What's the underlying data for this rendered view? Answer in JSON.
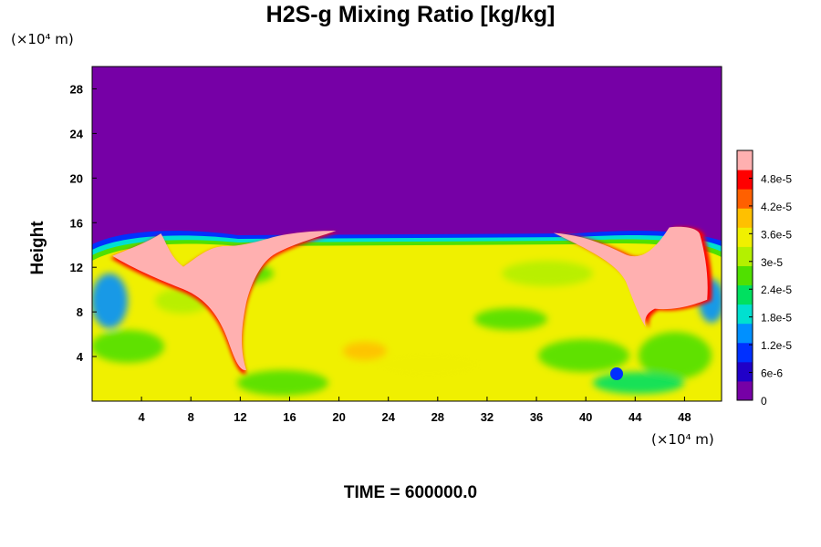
{
  "chart_data": {
    "type": "heatmap",
    "title": "H2S-g Mixing Ratio [kg/kg]",
    "ylabel": "Height",
    "xlabel": "",
    "x_unit": "(×10⁴ m)",
    "y_unit": "(×10⁴ m)",
    "xlim": [
      0,
      51
    ],
    "ylim": [
      0,
      30
    ],
    "x_ticks": [
      4,
      8,
      12,
      16,
      20,
      24,
      28,
      32,
      36,
      40,
      44,
      48
    ],
    "y_ticks": [
      4,
      8,
      12,
      16,
      20,
      24,
      28
    ],
    "colorbar": {
      "range": [
        0,
        5.4e-05
      ],
      "tick_labels": [
        "0",
        "6e-6",
        "1.2e-5",
        "1.8e-5",
        "2.4e-5",
        "3e-5",
        "3.6e-5",
        "4.2e-5",
        "4.8e-5"
      ],
      "tick_values": [
        0,
        6e-06,
        1.2e-05,
        1.8e-05,
        2.4e-05,
        3e-05,
        3.6e-05,
        4.2e-05,
        4.8e-05
      ],
      "colors": [
        "#7600a6",
        "#2000c8",
        "#0030ff",
        "#0090ff",
        "#00e0d0",
        "#00e060",
        "#50e000",
        "#b4f000",
        "#f0f000",
        "#ffc000",
        "#ff6000",
        "#ff0000",
        "#ffb0b0"
      ]
    },
    "field_description_values": {
      "upper_layer_top_height": 15.2,
      "upper_layer_value": 0,
      "lower_layer_typical_value": 3.4e-05,
      "plume_value": 5.2e-05
    },
    "grid": false
  },
  "footer": {
    "time_label": "TIME = 600000.0"
  }
}
